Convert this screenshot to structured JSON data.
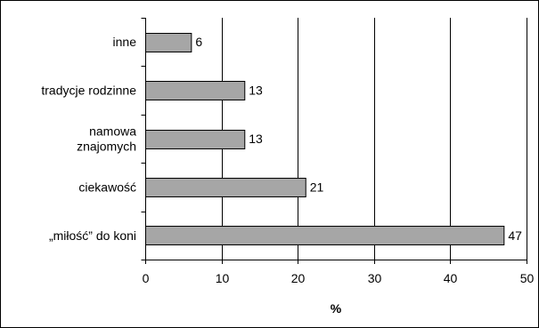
{
  "chart_data": {
    "type": "bar",
    "orientation": "horizontal",
    "title": "",
    "categories": [
      "inne",
      "tradycje rodzinne",
      "namowa\nznajomych",
      "ciekawość",
      "„miłość” do koni"
    ],
    "values": [
      6,
      13,
      13,
      21,
      47
    ],
    "value_labels": [
      "6",
      "13",
      "13",
      "21",
      "47"
    ],
    "xlabel": "%",
    "ylabel": "",
    "xlim": [
      0,
      50
    ],
    "xticks": [
      0,
      10,
      20,
      30,
      40,
      50
    ],
    "grid": "vertical lines at each tick",
    "legend": "none",
    "colors": {
      "bar_fill": "#A6A6A6",
      "bar_stroke": "#000000",
      "grid": "#000000"
    }
  }
}
